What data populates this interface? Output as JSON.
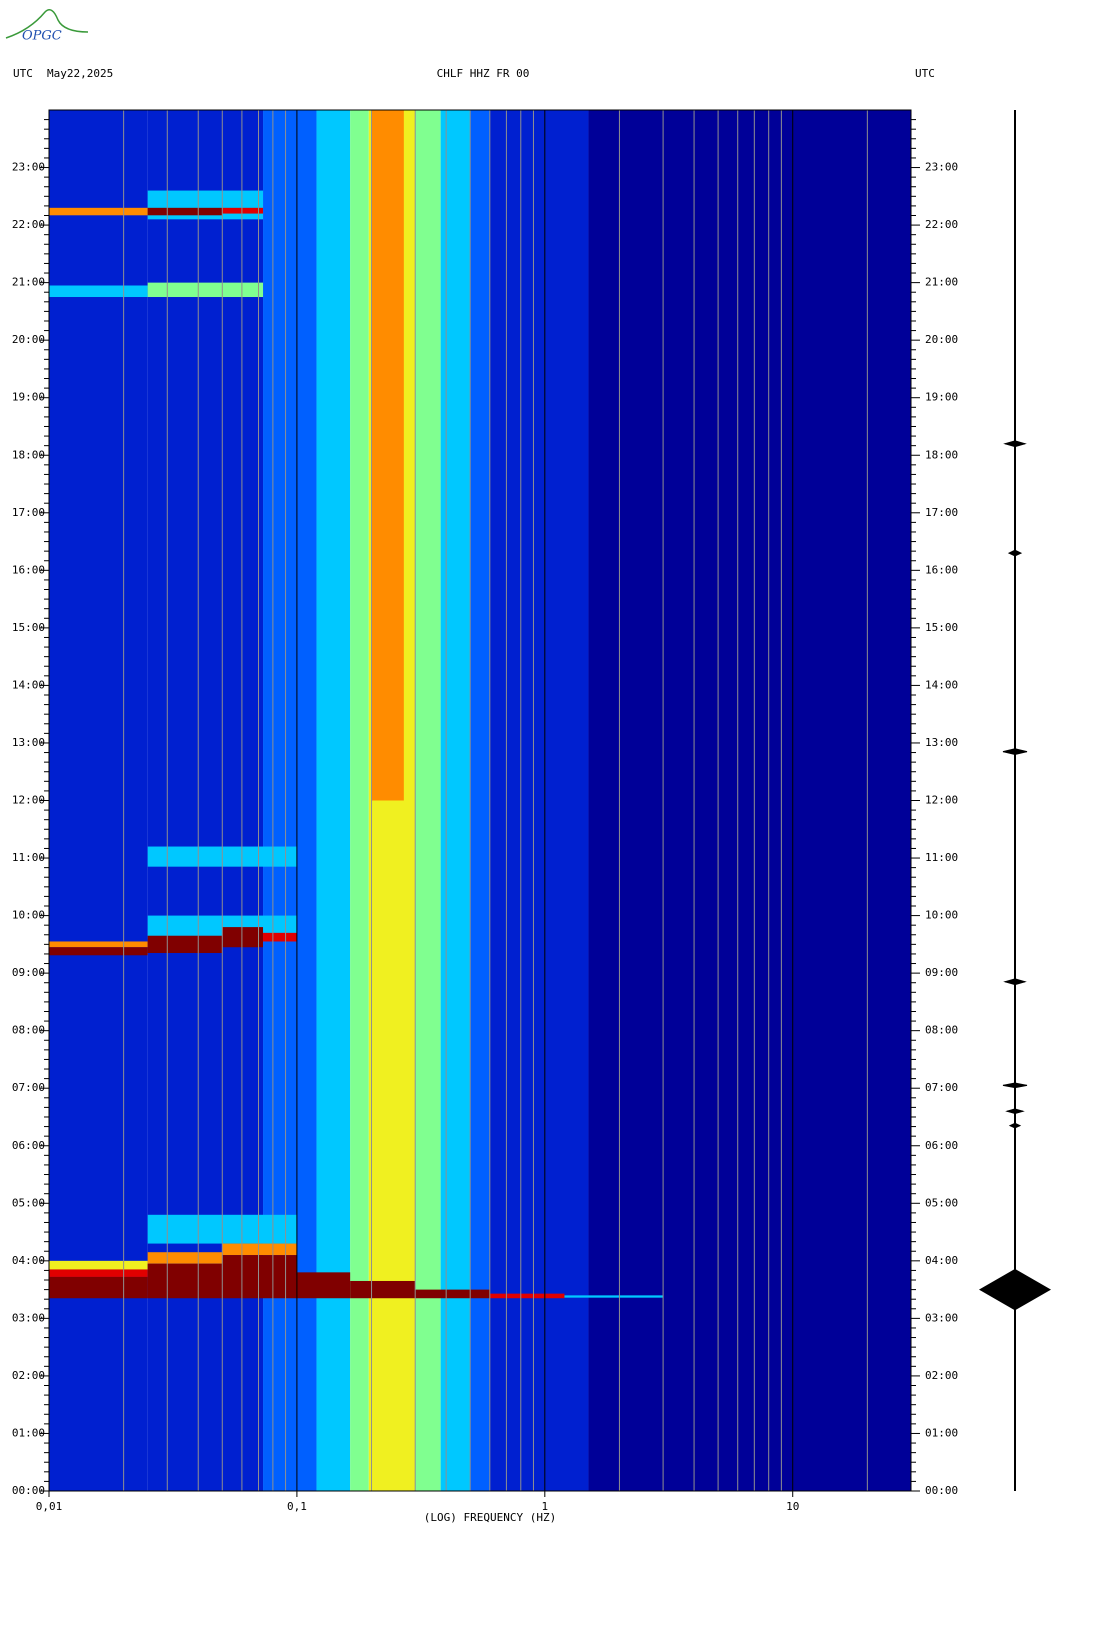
{
  "logo": "OPGC",
  "chart_data": {
    "type": "spectrogram",
    "title": "CHLF HHZ FR 00",
    "left_header": [
      "UTC",
      "May22,2025"
    ],
    "right_header": "UTC",
    "xlabel": "(LOG) FREQUENCY (HZ)",
    "log_x": true,
    "xlim": [
      0.01,
      30
    ],
    "xticks": [
      {
        "value": 0.01,
        "label": "0,01"
      },
      {
        "value": 0.1,
        "label": "0,1"
      },
      1,
      10
    ],
    "ylim": [
      0,
      24
    ],
    "yticks": [
      {
        "value": 0,
        "label": "00:00"
      },
      {
        "value": 1,
        "label": "01:00"
      },
      {
        "value": 2,
        "label": "02:00"
      },
      {
        "value": 3,
        "label": "03:00"
      },
      {
        "value": 4,
        "label": "04:00"
      },
      {
        "value": 5,
        "label": "05:00"
      },
      {
        "value": 6,
        "label": "06:00"
      },
      {
        "value": 7,
        "label": "07:00"
      },
      {
        "value": 8,
        "label": "08:00"
      },
      {
        "value": 9,
        "label": "09:00"
      },
      {
        "value": 10,
        "label": "10:00"
      },
      {
        "value": 11,
        "label": "11:00"
      },
      {
        "value": 12,
        "label": "12:00"
      },
      {
        "value": 13,
        "label": "13:00"
      },
      {
        "value": 14,
        "label": "14:00"
      },
      {
        "value": 15,
        "label": "15:00"
      },
      {
        "value": 16,
        "label": "16:00"
      },
      {
        "value": 17,
        "label": "17:00"
      },
      {
        "value": 18,
        "label": "18:00"
      },
      {
        "value": 19,
        "label": "19:00"
      },
      {
        "value": 20,
        "label": "20:00"
      },
      {
        "value": 21,
        "label": "21:00"
      },
      {
        "value": 22,
        "label": "22:00"
      },
      {
        "value": 23,
        "label": "23:00"
      }
    ],
    "colormap": [
      "#000098",
      "#0020d0",
      "#0060ff",
      "#00c8ff",
      "#80ff90",
      "#f0f020",
      "#ff8c00",
      "#e00000",
      "#800000"
    ],
    "freq_edges": [
      0.01,
      0.025,
      0.05,
      0.073,
      0.1,
      0.12,
      0.164,
      0.195,
      0.3,
      0.38,
      0.5,
      0.6,
      1.5,
      30
    ],
    "background": [
      1,
      1,
      1,
      2,
      2,
      3,
      4,
      5,
      4,
      3,
      2,
      1,
      0
    ],
    "events": [
      {
        "t": [
          12,
          24
        ],
        "f": [
          0.2,
          0.27
        ],
        "level": 6
      },
      {
        "t": [
          4.3,
          4.8
        ],
        "f": [
          0.025,
          0.1
        ],
        "level": 3
      },
      {
        "t": [
          3.85,
          4.0
        ],
        "f": [
          0.01,
          0.025
        ],
        "level": 5
      },
      {
        "t": [
          3.72,
          3.85
        ],
        "f": [
          0.01,
          0.025
        ],
        "level": 7
      },
      {
        "t": [
          3.35,
          3.72
        ],
        "f": [
          0.01,
          0.025
        ],
        "level": 8
      },
      {
        "t": [
          3.95,
          4.15
        ],
        "f": [
          0.025,
          0.05
        ],
        "level": 6
      },
      {
        "t": [
          3.35,
          3.95
        ],
        "f": [
          0.025,
          0.05
        ],
        "level": 8
      },
      {
        "t": [
          4.1,
          4.3
        ],
        "f": [
          0.05,
          0.1
        ],
        "level": 6
      },
      {
        "t": [
          3.35,
          4.1
        ],
        "f": [
          0.05,
          0.1
        ],
        "level": 8
      },
      {
        "t": [
          3.35,
          3.8
        ],
        "f": [
          0.1,
          0.164
        ],
        "level": 8
      },
      {
        "t": [
          3.35,
          3.65
        ],
        "f": [
          0.164,
          0.3
        ],
        "level": 8
      },
      {
        "t": [
          3.35,
          3.5
        ],
        "f": [
          0.3,
          0.6
        ],
        "level": 8
      },
      {
        "t": [
          3.35,
          3.43
        ],
        "f": [
          0.6,
          1.2
        ],
        "level": 7
      },
      {
        "t": [
          3.36,
          3.4
        ],
        "f": [
          1.2,
          3
        ],
        "level": 3
      },
      {
        "t": [
          9.6,
          10
        ],
        "f": [
          0.025,
          0.1
        ],
        "level": 3
      },
      {
        "t": [
          9.45,
          9.55
        ],
        "f": [
          0.01,
          0.025
        ],
        "level": 6
      },
      {
        "t": [
          9.31,
          9.45
        ],
        "f": [
          0.01,
          0.025
        ],
        "level": 8
      },
      {
        "t": [
          9.35,
          9.65
        ],
        "f": [
          0.025,
          0.05
        ],
        "level": 8
      },
      {
        "t": [
          9.45,
          9.8
        ],
        "f": [
          0.05,
          0.073
        ],
        "level": 8
      },
      {
        "t": [
          9.55,
          9.7
        ],
        "f": [
          0.073,
          0.1
        ],
        "level": 7
      },
      {
        "t": [
          10.85,
          11.2
        ],
        "f": [
          0.025,
          0.1
        ],
        "level": 3
      },
      {
        "t": [
          20.75,
          20.95
        ],
        "f": [
          0.01,
          0.025
        ],
        "level": 3
      },
      {
        "t": [
          20.75,
          21.0
        ],
        "f": [
          0.025,
          0.073
        ],
        "level": 4
      },
      {
        "t": [
          22.1,
          22.6
        ],
        "f": [
          0.025,
          0.073
        ],
        "level": 3
      },
      {
        "t": [
          22.17,
          22.3
        ],
        "f": [
          0.01,
          0.025
        ],
        "level": 6
      },
      {
        "t": [
          22.17,
          22.3
        ],
        "f": [
          0.025,
          0.05
        ],
        "level": 8
      },
      {
        "t": [
          22.2,
          22.3
        ],
        "f": [
          0.05,
          0.073
        ],
        "level": 7
      }
    ],
    "trace": [
      {
        "time": 18.2,
        "amplitude": 10,
        "duration": 0.1
      },
      {
        "time": 16.3,
        "amplitude": 6,
        "duration": 0.1
      },
      {
        "time": 12.85,
        "amplitude": 12,
        "duration": 0.1
      },
      {
        "time": 8.85,
        "amplitude": 10,
        "duration": 0.1
      },
      {
        "time": 7.05,
        "amplitude": 12,
        "duration": 0.08
      },
      {
        "time": 6.6,
        "amplitude": 8,
        "duration": 0.08
      },
      {
        "time": 6.35,
        "amplitude": 5,
        "duration": 0.08
      },
      {
        "time": 3.5,
        "amplitude": 35,
        "duration": 0.7
      }
    ]
  }
}
